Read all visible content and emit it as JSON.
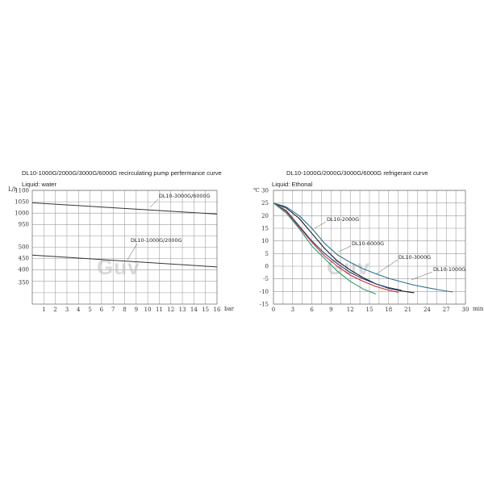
{
  "chart_data": [
    {
      "type": "line",
      "title": "DL10-1000G/2000G/3000G/6000G recirculating pump perfermance curve",
      "subtitle": "Liquid: water",
      "ylabel": "L/h",
      "xlabel": "bar",
      "x_ticks": [
        1,
        2,
        3,
        4,
        5,
        6,
        7,
        8,
        9,
        10,
        11,
        12,
        13,
        14,
        15,
        16
      ],
      "y_tick_labels": [
        "1100",
        "1050",
        "1000",
        "950",
        "500",
        "450",
        "400",
        "350"
      ],
      "series": [
        {
          "name": "DL10-3000G/6000G",
          "x": [
            0,
            16
          ],
          "y": [
            1045,
            995
          ],
          "color": "#333333"
        },
        {
          "name": "DL10-1000G/2000G",
          "x": [
            0,
            16
          ],
          "y": [
            465,
            415
          ],
          "color": "#333333"
        }
      ],
      "grid": true
    },
    {
      "type": "line",
      "title": "DL10-1000G/2000G/3000G/6000G refrigerant curve",
      "subtitle": "Liquid: Ethonal",
      "ylabel": "℃",
      "xlabel": "min",
      "xlim": [
        0,
        30
      ],
      "ylim": [
        -15,
        30
      ],
      "x_ticks": [
        0,
        3,
        6,
        9,
        12,
        15,
        18,
        21,
        24,
        27,
        30
      ],
      "y_ticks": [
        30,
        25,
        20,
        15,
        10,
        5,
        0,
        -5,
        -10,
        -15
      ],
      "series": [
        {
          "name": "DL10-2000G",
          "color": "#1c1c1c",
          "x": [
            0,
            2,
            4,
            6,
            8,
            10,
            12,
            14,
            16,
            18,
            20,
            22
          ],
          "y": [
            25,
            23,
            19,
            13,
            7,
            2,
            -1.5,
            -4.5,
            -7,
            -8.7,
            -9.8,
            -10.5
          ]
        },
        {
          "name": "DL10-6000G",
          "color": "#2f3f8f",
          "x": [
            0,
            2,
            4,
            6,
            8,
            10,
            12,
            14,
            16,
            18,
            20
          ],
          "y": [
            25,
            22,
            16,
            10,
            5,
            1,
            -2.5,
            -5,
            -7,
            -8.5,
            -9.5
          ]
        },
        {
          "name": "DL10-3000G",
          "color": "#c0392b",
          "x": [
            0,
            2,
            4,
            6,
            8,
            10,
            12,
            14,
            16,
            18,
            19.5
          ],
          "y": [
            25,
            21.5,
            15.5,
            9.5,
            4,
            0,
            -3.5,
            -6,
            -8,
            -9.5,
            -10.3
          ]
        },
        {
          "name": "DL10-1000G",
          "color": "#2f6f8f",
          "x": [
            0,
            2,
            4,
            6,
            8,
            10,
            12,
            14,
            16,
            18,
            20,
            22,
            24,
            26,
            28
          ],
          "y": [
            25,
            23.5,
            20,
            15,
            9,
            4.5,
            1.5,
            -1,
            -3,
            -4.8,
            -6.2,
            -7.5,
            -8.5,
            -9.4,
            -10.2
          ]
        },
        {
          "name": "",
          "color": "#2e9a6e",
          "x": [
            0,
            2,
            4,
            6,
            8,
            10,
            12,
            14,
            16
          ],
          "y": [
            25,
            21,
            15,
            8,
            3,
            -2,
            -6,
            -9,
            -11
          ]
        }
      ],
      "grid": true
    }
  ],
  "watermark": "Guv"
}
